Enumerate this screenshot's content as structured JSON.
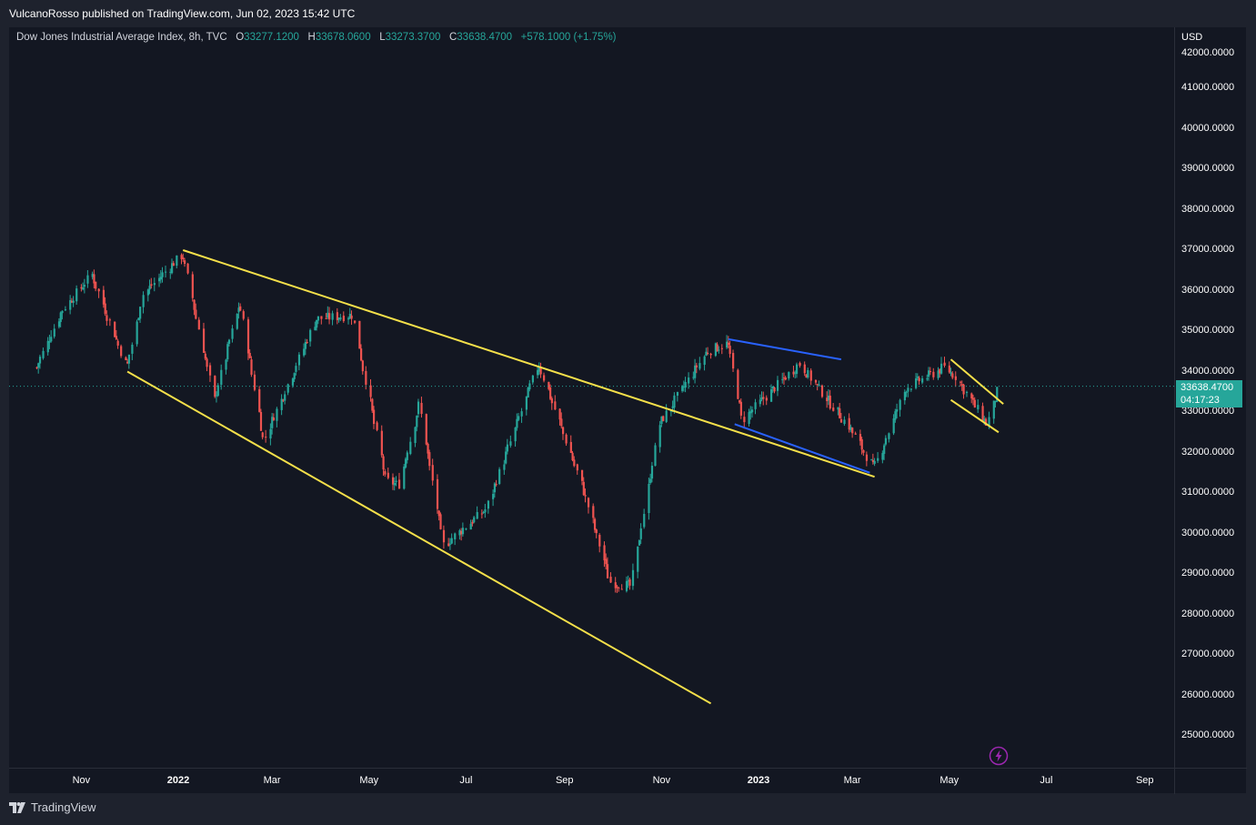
{
  "header": {
    "publisher_text": "VulcanoRosso published on TradingView.com, Jun 02, 2023 15:42 UTC"
  },
  "legend": {
    "symbol": "Dow Jones Industrial Average Index, 8h, TVC",
    "open_label": "O",
    "open": "33277.1200",
    "high_label": "H",
    "high": "33678.0600",
    "low_label": "L",
    "low": "33273.3700",
    "close_label": "C",
    "close": "33638.4700",
    "change": "+578.1000 (+1.75%)"
  },
  "price_axis": {
    "currency": "USD",
    "ticks": [
      "42000.0000",
      "41000.0000",
      "40000.0000",
      "39000.0000",
      "38000.0000",
      "37000.0000",
      "36000.0000",
      "35000.0000",
      "34000.0000",
      "33000.0000",
      "32000.0000",
      "31000.0000",
      "30000.0000",
      "29000.0000",
      "28000.0000",
      "27000.0000",
      "26000.0000",
      "25000.0000"
    ],
    "last_price": "33638.4700",
    "countdown": "04:17:23"
  },
  "time_axis": {
    "labels": [
      "Nov",
      "2022",
      "Mar",
      "May",
      "Jul",
      "Sep",
      "Nov",
      "2023",
      "Mar",
      "May",
      "Jul",
      "Sep"
    ]
  },
  "footer": {
    "brand": "TradingView"
  },
  "colors": {
    "up": "#26a69a",
    "down": "#ef5350",
    "trendline_yellow": "#f5e04a",
    "trendline_blue": "#2962ff",
    "background": "#131722"
  },
  "chart_data": {
    "type": "candlestick",
    "title": "Dow Jones Industrial Average Index, 8h, TVC",
    "interval": "8h",
    "ylim": [
      24300,
      42200
    ],
    "y_unit": "USD",
    "x_range": [
      "2021-10-01",
      "2023-09-30"
    ],
    "series": [
      {
        "name": "DJI close (approximate swing points)",
        "points": [
          [
            "2021-10-04",
            34100
          ],
          [
            "2021-10-20",
            35500
          ],
          [
            "2021-11-08",
            36400
          ],
          [
            "2021-11-30",
            34100
          ],
          [
            "2021-12-10",
            35900
          ],
          [
            "2022-01-04",
            36900
          ],
          [
            "2022-01-24",
            33300
          ],
          [
            "2022-02-09",
            35700
          ],
          [
            "2022-02-24",
            32300
          ],
          [
            "2022-03-29",
            35300
          ],
          [
            "2022-04-21",
            35400
          ],
          [
            "2022-05-12",
            31300
          ],
          [
            "2022-05-20",
            31200
          ],
          [
            "2022-06-02",
            33200
          ],
          [
            "2022-06-17",
            29700
          ],
          [
            "2022-07-14",
            30600
          ],
          [
            "2022-08-16",
            34200
          ],
          [
            "2022-09-13",
            31100
          ],
          [
            "2022-09-30",
            28800
          ],
          [
            "2022-10-13",
            28700
          ],
          [
            "2022-10-31",
            32700
          ],
          [
            "2022-11-30",
            34500
          ],
          [
            "2022-12-13",
            34700
          ],
          [
            "2022-12-22",
            32800
          ],
          [
            "2023-01-27",
            34200
          ],
          [
            "2023-02-28",
            32600
          ],
          [
            "2023-03-15",
            31600
          ],
          [
            "2023-04-04",
            33600
          ],
          [
            "2023-04-28",
            34100
          ],
          [
            "2023-05-05",
            33900
          ],
          [
            "2023-05-25",
            32700
          ],
          [
            "2023-06-02",
            33638.47
          ]
        ]
      }
    ],
    "trendlines": [
      {
        "name": "upper wedge line",
        "color": "yellow",
        "from": [
          "2022-01-04",
          37000
        ],
        "to": [
          "2023-03-15",
          31400
        ]
      },
      {
        "name": "lower wedge line",
        "color": "yellow",
        "from": [
          "2021-11-30",
          34000
        ],
        "to": [
          "2022-12-02",
          25800
        ]
      },
      {
        "name": "upper flag line",
        "color": "blue",
        "from": [
          "2022-12-13",
          34800
        ],
        "to": [
          "2023-02-22",
          34300
        ]
      },
      {
        "name": "lower flag line",
        "color": "blue",
        "from": [
          "2022-12-17",
          32700
        ],
        "to": [
          "2023-03-12",
          31500
        ]
      },
      {
        "name": "upper channel line",
        "color": "yellow",
        "from": [
          "2023-05-02",
          34300
        ],
        "to": [
          "2023-06-04",
          33200
        ]
      },
      {
        "name": "lower channel line",
        "color": "yellow",
        "from": [
          "2023-05-02",
          33300
        ],
        "to": [
          "2023-06-01",
          32500
        ]
      }
    ],
    "last_value": 33638.47
  }
}
